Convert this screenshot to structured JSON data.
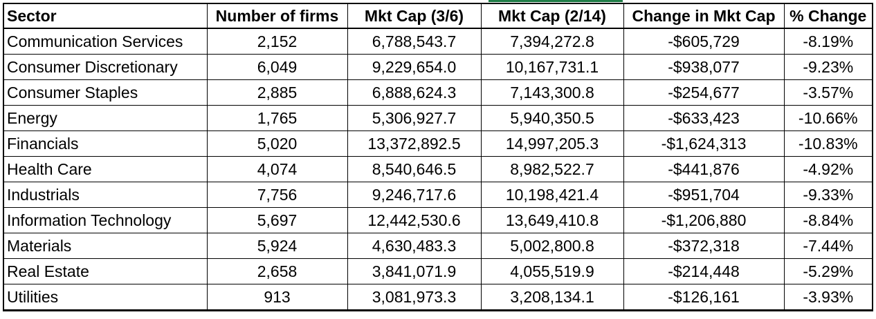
{
  "table": {
    "headers": [
      "Sector",
      "Number of firms",
      "Mkt Cap (3/6)",
      "Mkt Cap (2/14)",
      "Change in Mkt Cap",
      "% Change"
    ],
    "rows": [
      [
        "Communication Services",
        "2,152",
        "6,788,543.7",
        "7,394,272.8",
        "-$605,729",
        "-8.19%"
      ],
      [
        "Consumer Discretionary",
        "6,049",
        "9,229,654.0",
        "10,167,731.1",
        "-$938,077",
        "-9.23%"
      ],
      [
        "Consumer Staples",
        "2,885",
        "6,888,624.3",
        "7,143,300.8",
        "-$254,677",
        "-3.57%"
      ],
      [
        "Energy",
        "1,765",
        "5,306,927.7",
        "5,940,350.5",
        "-$633,423",
        "-10.66%"
      ],
      [
        "Financials",
        "5,020",
        "13,372,892.5",
        "14,997,205.3",
        "-$1,624,313",
        "-10.83%"
      ],
      [
        "Health Care",
        "4,074",
        "8,540,646.5",
        "8,982,522.7",
        "-$441,876",
        "-4.92%"
      ],
      [
        "Industrials",
        "7,756",
        "9,246,717.6",
        "10,198,421.4",
        "-$951,704",
        "-9.33%"
      ],
      [
        "Information Technology",
        "5,697",
        "12,442,530.6",
        "13,649,410.8",
        "-$1,206,880",
        "-8.84%"
      ],
      [
        "Materials",
        "5,924",
        "4,630,483.3",
        "5,002,800.8",
        "-$372,318",
        "-7.44%"
      ],
      [
        "Real Estate",
        "2,658",
        "3,841,071.9",
        "4,055,519.9",
        "-$214,448",
        "-5.29%"
      ],
      [
        "Utilities",
        "913",
        "3,081,973.3",
        "3,208,134.1",
        "-$126,161",
        "-3.93%"
      ]
    ]
  },
  "colors": {
    "selection_accent": "#1e7b45",
    "border": "#000000"
  }
}
